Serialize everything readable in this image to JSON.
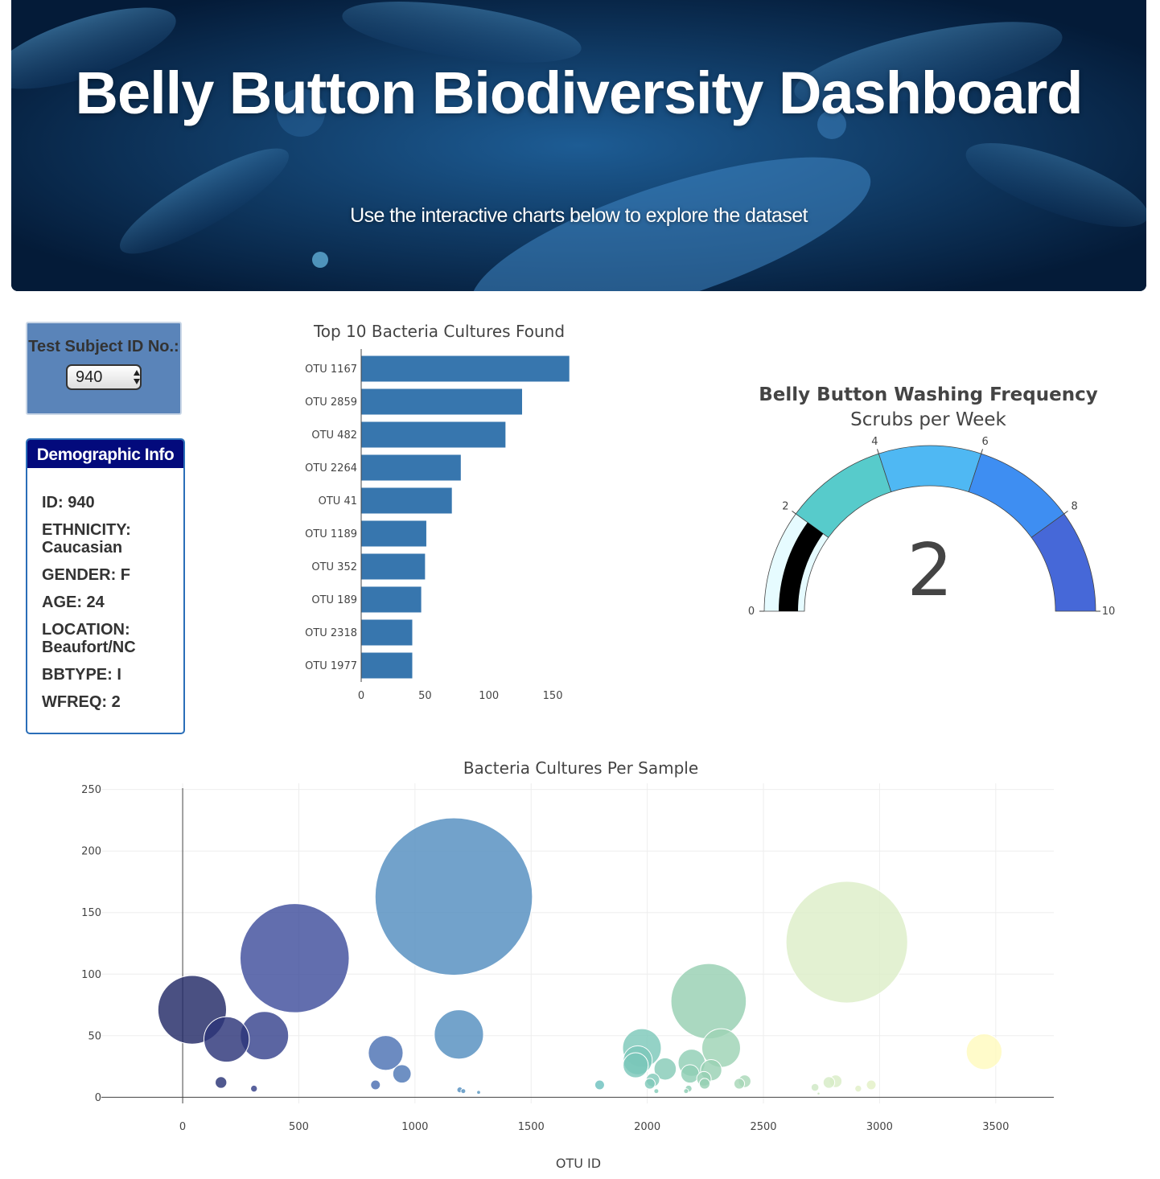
{
  "header": {
    "title": "Belly Button Biodiversity Dashboard",
    "subtitle": "Use the interactive charts below to explore the dataset"
  },
  "selector": {
    "label": "Test Subject ID No.:",
    "value": "940"
  },
  "demographics": {
    "heading": "Demographic Info",
    "rows": [
      "ID: 940",
      "ETHNICITY: Caucasian",
      "GENDER: F",
      "AGE: 24",
      "LOCATION: Beaufort/NC",
      "BBTYPE: I",
      "WFREQ: 2"
    ]
  },
  "colors": {
    "bar": "#3776ae",
    "demo_header": "#030a7c",
    "selector_panel": "#5a84b9"
  },
  "chart_data": [
    {
      "type": "bar",
      "orientation": "horizontal",
      "title": "Top 10 Bacteria Cultures Found",
      "categories": [
        "OTU 1167",
        "OTU 2859",
        "OTU 482",
        "OTU 2264",
        "OTU 41",
        "OTU 1189",
        "OTU 352",
        "OTU 189",
        "OTU 2318",
        "OTU 1977"
      ],
      "values": [
        163,
        126,
        113,
        78,
        71,
        51,
        50,
        47,
        40,
        40
      ],
      "xlim": [
        0,
        172
      ],
      "xticks": [
        0,
        50,
        100,
        150
      ]
    },
    {
      "type": "gauge",
      "title": "Belly Button Washing Frequency",
      "subtitle": "Scrubs per Week",
      "value": 2,
      "range": [
        0,
        10
      ],
      "ticks": [
        0,
        2,
        4,
        6,
        8,
        10
      ],
      "steps": [
        {
          "range": [
            0,
            2
          ],
          "color": "#e6fbff"
        },
        {
          "range": [
            2,
            4
          ],
          "color": "#57cbcb"
        },
        {
          "range": [
            4,
            6
          ],
          "color": "#4fb8f3"
        },
        {
          "range": [
            6,
            8
          ],
          "color": "#3e8ef2"
        },
        {
          "range": [
            8,
            10
          ],
          "color": "#4668d8"
        }
      ],
      "bar_color": "#000000"
    },
    {
      "type": "scatter",
      "mode": "bubble",
      "title": "Bacteria Cultures Per Sample",
      "xlabel": "OTU ID",
      "ylabel": "",
      "xlim": [
        -350,
        3750
      ],
      "ylim": [
        -5,
        255
      ],
      "xticks": [
        0,
        500,
        1000,
        1500,
        2000,
        2500,
        3000,
        3500
      ],
      "yticks": [
        0,
        50,
        100,
        150,
        200,
        250
      ],
      "grid": true,
      "points": [
        {
          "x": 1167,
          "y": 163
        },
        {
          "x": 2859,
          "y": 126
        },
        {
          "x": 482,
          "y": 113
        },
        {
          "x": 2264,
          "y": 78
        },
        {
          "x": 41,
          "y": 71
        },
        {
          "x": 1189,
          "y": 51
        },
        {
          "x": 352,
          "y": 50
        },
        {
          "x": 189,
          "y": 47
        },
        {
          "x": 2318,
          "y": 40
        },
        {
          "x": 1977,
          "y": 40
        },
        {
          "x": 3450,
          "y": 37
        },
        {
          "x": 874,
          "y": 36
        },
        {
          "x": 1959,
          "y": 30
        },
        {
          "x": 2191,
          "y": 28
        },
        {
          "x": 1950,
          "y": 26
        },
        {
          "x": 2077,
          "y": 23
        },
        {
          "x": 2275,
          "y": 22
        },
        {
          "x": 944,
          "y": 19
        },
        {
          "x": 2184,
          "y": 19
        },
        {
          "x": 2244,
          "y": 15
        },
        {
          "x": 2024,
          "y": 14
        },
        {
          "x": 2419,
          "y": 13
        },
        {
          "x": 2811,
          "y": 13
        },
        {
          "x": 165,
          "y": 12
        },
        {
          "x": 2782,
          "y": 12
        },
        {
          "x": 2247,
          "y": 11
        },
        {
          "x": 2011,
          "y": 11
        },
        {
          "x": 2396,
          "y": 11
        },
        {
          "x": 830,
          "y": 10
        },
        {
          "x": 2964,
          "y": 10
        },
        {
          "x": 1795,
          "y": 10
        },
        {
          "x": 2722,
          "y": 8
        },
        {
          "x": 307,
          "y": 7
        },
        {
          "x": 2178,
          "y": 7
        },
        {
          "x": 2908,
          "y": 7
        },
        {
          "x": 1193,
          "y": 6
        },
        {
          "x": 1208,
          "y": 5
        },
        {
          "x": 2039,
          "y": 5
        },
        {
          "x": 2167,
          "y": 5
        },
        {
          "x": 1274,
          "y": 4
        },
        {
          "x": 2739,
          "y": 3
        },
        {
          "x": 2737,
          "y": 3
        }
      ]
    }
  ]
}
